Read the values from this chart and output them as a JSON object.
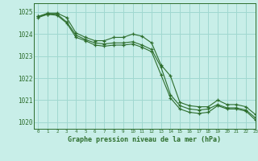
{
  "title": "Graphe pression niveau de la mer (hPa)",
  "bg_color": "#c8eee8",
  "grid_color": "#a0d8d0",
  "line_color": "#2d6e2d",
  "xlim": [
    -0.5,
    23
  ],
  "ylim": [
    1019.7,
    1025.4
  ],
  "yticks": [
    1020,
    1021,
    1022,
    1023,
    1024,
    1025
  ],
  "xticks": [
    0,
    1,
    2,
    3,
    4,
    5,
    6,
    7,
    8,
    9,
    10,
    11,
    12,
    13,
    14,
    15,
    16,
    17,
    18,
    19,
    20,
    21,
    22,
    23
  ],
  "series1_x": [
    0,
    1,
    2,
    3,
    4,
    5,
    6,
    7,
    8,
    9,
    10,
    11,
    12,
    13,
    14,
    15,
    16,
    17,
    18,
    19,
    20,
    21,
    22,
    23
  ],
  "series1_y": [
    1024.8,
    1024.95,
    1024.95,
    1024.75,
    1024.05,
    1023.85,
    1023.7,
    1023.7,
    1023.85,
    1023.85,
    1024.0,
    1023.9,
    1023.6,
    1022.6,
    1022.1,
    1020.9,
    1020.75,
    1020.7,
    1020.7,
    1021.0,
    1020.8,
    1020.8,
    1020.7,
    1020.35
  ],
  "series2_x": [
    0,
    1,
    2,
    3,
    4,
    5,
    6,
    7,
    8,
    9,
    10,
    11,
    12,
    13,
    14,
    15,
    16,
    17,
    18,
    19,
    20,
    21,
    22,
    23
  ],
  "series2_y": [
    1024.8,
    1024.9,
    1024.9,
    1024.55,
    1023.95,
    1023.75,
    1023.6,
    1023.55,
    1023.6,
    1023.6,
    1023.65,
    1023.5,
    1023.3,
    1022.5,
    1021.25,
    1020.75,
    1020.6,
    1020.55,
    1020.6,
    1020.8,
    1020.65,
    1020.65,
    1020.55,
    1020.2
  ],
  "series3_x": [
    0,
    1,
    2,
    3,
    4,
    5,
    6,
    7,
    8,
    9,
    10,
    11,
    12,
    13,
    14,
    15,
    16,
    17,
    18,
    19,
    20,
    21,
    22,
    23
  ],
  "series3_y": [
    1024.75,
    1024.9,
    1024.85,
    1024.5,
    1023.85,
    1023.7,
    1023.5,
    1023.45,
    1023.5,
    1023.5,
    1023.55,
    1023.4,
    1023.2,
    1022.15,
    1021.1,
    1020.6,
    1020.45,
    1020.4,
    1020.45,
    1020.75,
    1020.6,
    1020.6,
    1020.5,
    1020.1
  ]
}
